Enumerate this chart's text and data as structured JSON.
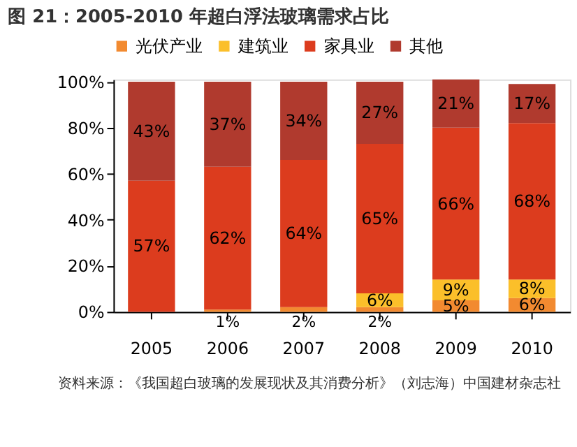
{
  "chart_data": {
    "type": "bar",
    "stacked": true,
    "title": "图 21：2005-2010 年超白浮法玻璃需求占比",
    "categories": [
      "2005",
      "2006",
      "2007",
      "2008",
      "2009",
      "2010"
    ],
    "series": [
      {
        "name": "光伏产业",
        "color": "#f28a30",
        "values": [
          0,
          1,
          2,
          2,
          5,
          6
        ],
        "value_labels": [
          null,
          "1%",
          "2%",
          "2%",
          "5%",
          "6%"
        ]
      },
      {
        "name": "建筑业",
        "color": "#fbbf2a",
        "values": [
          0,
          0,
          0,
          6,
          9,
          8
        ],
        "value_labels": [
          null,
          null,
          null,
          "6%",
          "9%",
          "8%"
        ]
      },
      {
        "name": "家具业",
        "color": "#dc3c1e",
        "values": [
          57,
          62,
          64,
          65,
          66,
          68
        ],
        "value_labels": [
          "57%",
          "62%",
          "64%",
          "65%",
          "66%",
          "68%"
        ]
      },
      {
        "name": "其他",
        "color": "#b03a2e",
        "values": [
          43,
          37,
          34,
          27,
          21,
          17
        ],
        "value_labels": [
          "43%",
          "37%",
          "34%",
          "27%",
          "21%",
          "17%"
        ]
      }
    ],
    "ylim": [
      0,
      101
    ],
    "yticks": [
      {
        "value": 0,
        "label": "0%"
      },
      {
        "value": 20,
        "label": "20%"
      },
      {
        "value": 40,
        "label": "40%"
      },
      {
        "value": 60,
        "label": "60%"
      },
      {
        "value": 80,
        "label": "80%"
      },
      {
        "value": 100,
        "label": "100%"
      }
    ],
    "grid": false,
    "legend": "top",
    "annotations": [
      "资料来源：《我国超白玻璃的发展现状及其消费分析》（刘志海）中国建材杂志社"
    ]
  }
}
